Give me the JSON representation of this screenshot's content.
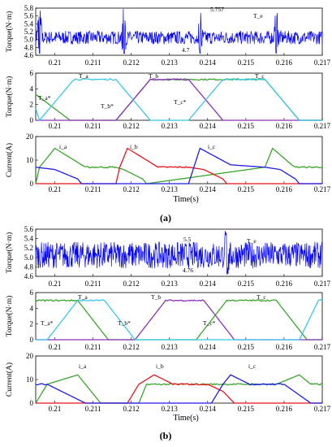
{
  "figure": {
    "panels": [
      {
        "label": "(a)",
        "xlabel": "Time(s)",
        "x_ticks": [
          "0.21",
          "0.211",
          "0.212",
          "0.213",
          "0.214",
          "0.215",
          "0.216",
          "0.217"
        ],
        "colors": {
          "torque": "#0000ff",
          "a": "#3aa52b",
          "b": "#e8131b",
          "c": "#1c1ce6",
          "a_ref": "#37c8e6",
          "b_ref": "#8a33b8",
          "c_ref": "#ff9c1b"
        }
      },
      {
        "label": "(b)",
        "xlabel": "Time(s)",
        "x_ticks": [
          "0.21",
          "0.211",
          "0.212",
          "0.213",
          "0.214",
          "0.215",
          "0.216",
          "0.217"
        ],
        "colors": {
          "torque": "#0000ff",
          "a": "#3aa52b",
          "b": "#e8131b",
          "c": "#1c1ce6",
          "a_ref": "#37c8e6",
          "b_ref": "#8a33b8",
          "c_ref": "#ff9c1b"
        }
      }
    ]
  },
  "chart_data": [
    {
      "type": "line",
      "panel": "(a)",
      "title": "",
      "xlabel": "",
      "ylabel": "Torque(N·m)",
      "xlim": [
        0.2095,
        0.217
      ],
      "ylim": [
        4.6,
        5.8
      ],
      "yticks": [
        4.6,
        4.8,
        5.0,
        5.2,
        5.4,
        5.6,
        5.8
      ],
      "series": [
        {
          "name": "Te",
          "color": "#0000ff",
          "mean": 5.05,
          "ripple": 0.17,
          "spikes_at": [
            0.2096,
            0.2118,
            0.2138,
            0.2158
          ]
        }
      ],
      "annotations": [
        "T_e",
        "5.757",
        "4.7"
      ]
    },
    {
      "type": "line",
      "panel": "(a)",
      "ylabel": "Torque(N·m)",
      "xlim": [
        0.2095,
        0.217
      ],
      "ylim": [
        0,
        6
      ],
      "yticks": [
        0,
        2,
        4,
        6
      ],
      "series": [
        {
          "name": "T_a",
          "color": "#3aa52b",
          "x": [
            0.2095,
            0.2104,
            0.2116,
            0.2125,
            0.2155,
            0.2164,
            0.217
          ],
          "y": [
            3.3,
            0,
            0,
            5.2,
            5.2,
            0,
            0
          ]
        },
        {
          "name": "T_b",
          "color": "#8a33b8",
          "x": [
            0.2095,
            0.2116,
            0.2125,
            0.2135,
            0.2144,
            0.217
          ],
          "y": [
            0,
            0,
            5.2,
            5.2,
            0,
            0
          ]
        },
        {
          "name": "T_c",
          "color": "#37c8e6",
          "x": [
            0.2095,
            0.2096,
            0.2105,
            0.2116,
            0.2125,
            0.2135,
            0.2144,
            0.2155,
            0.2164,
            0.217
          ],
          "y": [
            1.5,
            0,
            5.2,
            5.2,
            0,
            0,
            5.2,
            5.2,
            0,
            0
          ]
        }
      ],
      "annotations": [
        "T_a",
        "T_b",
        "T_c",
        "T_a*",
        "T_b*",
        "T_c*"
      ]
    },
    {
      "type": "line",
      "panel": "(a)",
      "ylabel": "Current(A)",
      "xlim": [
        0.2095,
        0.217
      ],
      "ylim": [
        0,
        20
      ],
      "yticks": [
        0,
        10,
        20
      ],
      "series": [
        {
          "name": "i_a",
          "color": "#3aa52b",
          "x": [
            0.2095,
            0.2096,
            0.21,
            0.2108,
            0.2116,
            0.2118,
            0.2123,
            0.2124,
            0.2155,
            0.2157,
            0.2162,
            0.2163,
            0.217
          ],
          "y": [
            0,
            7,
            15,
            7,
            7,
            6,
            2,
            0,
            7,
            15,
            8,
            7,
            7
          ]
        },
        {
          "name": "i_b",
          "color": "#e8131b",
          "x": [
            0.2095,
            0.2116,
            0.2117,
            0.2119,
            0.2127,
            0.2135,
            0.2139,
            0.2144,
            0.2145,
            0.217
          ],
          "y": [
            0,
            0,
            7,
            15,
            7,
            7,
            6,
            2,
            0,
            0
          ]
        },
        {
          "name": "i_c",
          "color": "#1c1ce6",
          "x": [
            0.2095,
            0.21,
            0.2106,
            0.2107,
            0.2135,
            0.2138,
            0.2146,
            0.2155,
            0.2159,
            0.2163,
            0.2164,
            0.217
          ],
          "y": [
            7,
            6,
            2,
            0,
            0,
            15,
            8,
            7,
            6,
            2,
            0,
            0
          ]
        }
      ],
      "annotations": [
        "i_a",
        "i_b",
        "i_c"
      ]
    },
    {
      "type": "line",
      "panel": "(b)",
      "ylabel": "Torque(N·m)",
      "xlim": [
        0.2095,
        0.217
      ],
      "ylim": [
        4.6,
        5.6
      ],
      "yticks": [
        4.6,
        4.8,
        5.0,
        5.2,
        5.4,
        5.6
      ],
      "series": [
        {
          "name": "Te",
          "color": "#0000ff",
          "mean": 5.05,
          "ripple": 0.28,
          "spikes_at": [
            0.2145
          ]
        }
      ],
      "annotations": [
        "T_e",
        "5.5",
        "4.76"
      ]
    },
    {
      "type": "line",
      "panel": "(b)",
      "ylabel": "Torque(N·m)",
      "xlim": [
        0.2095,
        0.217
      ],
      "ylim": [
        0,
        6
      ],
      "yticks": [
        0,
        2,
        4,
        6
      ],
      "series": [
        {
          "name": "T_a",
          "color": "#3aa52b",
          "x": [
            0.2095,
            0.2106,
            0.2114,
            0.2121,
            0.2137,
            0.2145,
            0.2158,
            0.2166,
            0.217
          ],
          "y": [
            5,
            5,
            0,
            0,
            0,
            5,
            5,
            0,
            0
          ]
        },
        {
          "name": "T_b",
          "color": "#8a33b8",
          "x": [
            0.2095,
            0.2121,
            0.2129,
            0.2139,
            0.2147,
            0.217
          ],
          "y": [
            0,
            0,
            5,
            5,
            0,
            0
          ]
        },
        {
          "name": "T_c",
          "color": "#37c8e6",
          "x": [
            0.2095,
            0.2098,
            0.2106,
            0.2113,
            0.2121,
            0.2164,
            0.2169,
            0.217
          ],
          "y": [
            0,
            0,
            5,
            5,
            0,
            0,
            5,
            5
          ]
        }
      ],
      "annotations": [
        "T_a",
        "T_b",
        "T_c",
        "T_a*",
        "T_b*",
        "T_c*"
      ]
    },
    {
      "type": "line",
      "panel": "(b)",
      "ylabel": "Current(A)",
      "xlim": [
        0.2095,
        0.217
      ],
      "ylim": [
        0,
        20
      ],
      "yticks": [
        0,
        10,
        20
      ],
      "series": [
        {
          "name": "i_a",
          "color": "#3aa52b",
          "x": [
            0.2095,
            0.2098,
            0.2106,
            0.2108,
            0.2112,
            0.2122,
            0.2124,
            0.2158,
            0.2164,
            0.2167,
            0.217
          ],
          "y": [
            0,
            8,
            12,
            8,
            0,
            0,
            8,
            8,
            12,
            8,
            8
          ]
        },
        {
          "name": "i_b",
          "color": "#e8131b",
          "x": [
            0.2095,
            0.2119,
            0.2122,
            0.2126,
            0.2131,
            0.214,
            0.2144,
            0.2147,
            0.217
          ],
          "y": [
            0,
            0,
            8,
            12,
            8,
            8,
            5,
            0,
            0
          ]
        },
        {
          "name": "i_c",
          "color": "#1c1ce6",
          "x": [
            0.2095,
            0.2098,
            0.2108,
            0.2141,
            0.2144,
            0.2146,
            0.2151,
            0.216,
            0.2167,
            0.217
          ],
          "y": [
            8,
            8,
            0,
            0,
            8,
            12,
            8,
            8,
            0,
            0
          ]
        }
      ],
      "annotations": [
        "i_a",
        "i_b",
        "i_c"
      ]
    }
  ]
}
